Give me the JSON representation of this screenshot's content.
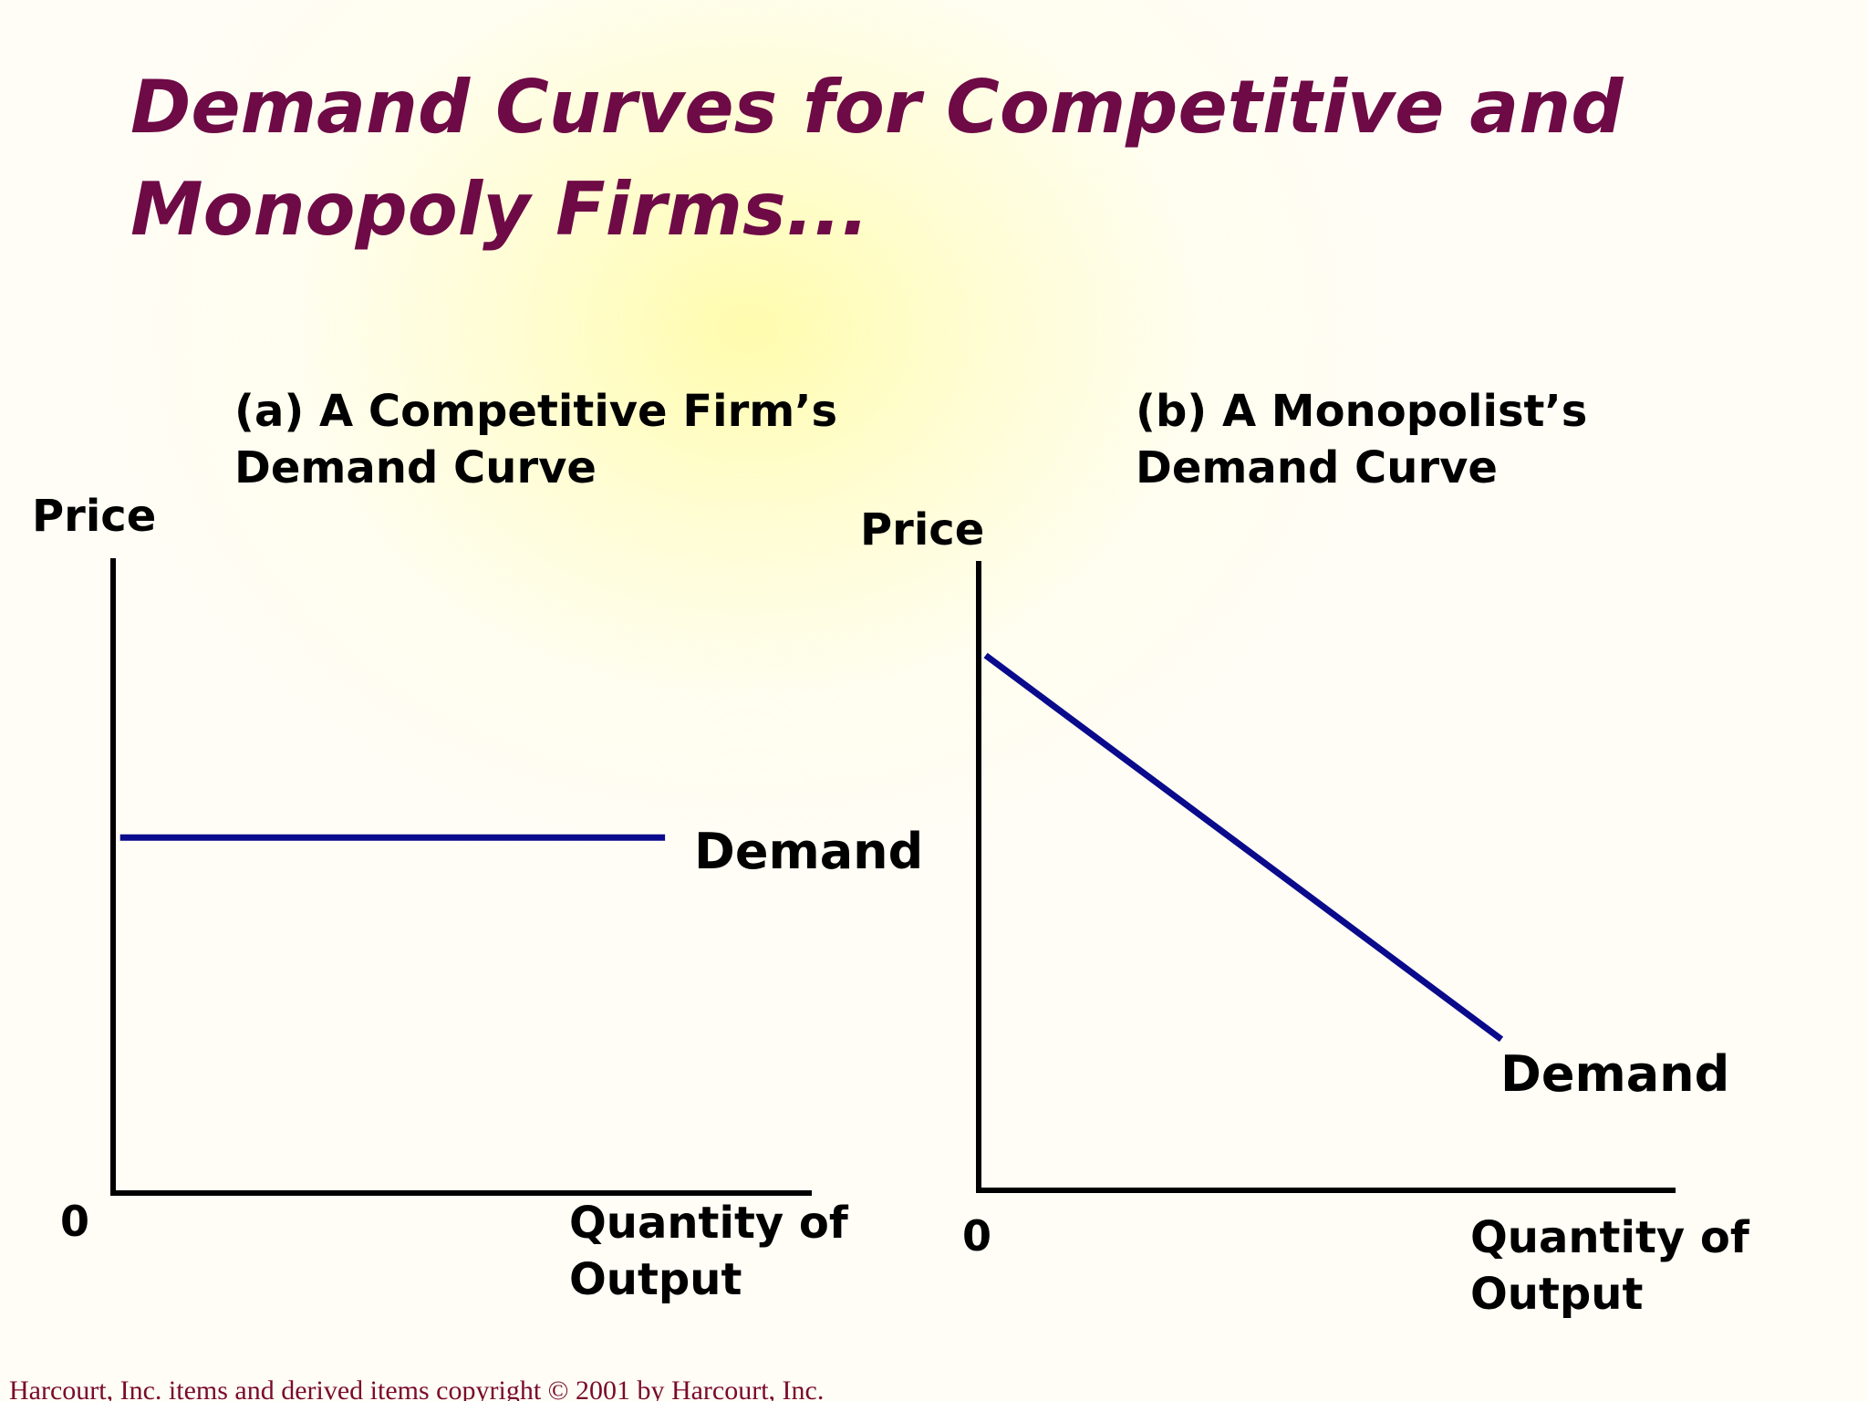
{
  "title": "Demand Curves for Competitive and Monopoly Firms...",
  "footer": "Harcourt, Inc. items and derived items copyright © 2001 by Harcourt, Inc.",
  "colors": {
    "title": "#6e0a46",
    "curve": "#0a0a8c",
    "axis": "#000000",
    "footer": "#7a0a2a"
  },
  "chart_data": [
    {
      "type": "line",
      "title_line1": "(a) A Competitive Firm’s",
      "title_line2": "Demand Curve",
      "ylabel": "Price",
      "xlabel_line1": "Quantity of",
      "xlabel_line2": "Output",
      "origin_label": "0",
      "xlim": [
        0,
        100
      ],
      "ylim": [
        0,
        100
      ],
      "series": [
        {
          "name": "Demand",
          "x": [
            1,
            79
          ],
          "y": [
            56,
            56
          ]
        }
      ]
    },
    {
      "type": "line",
      "title_line1": "(b) A Monopolist’s",
      "title_line2": "Demand Curve",
      "ylabel": "Price",
      "xlabel_line1": "Quantity of",
      "xlabel_line2": "Output",
      "origin_label": "0",
      "xlim": [
        0,
        100
      ],
      "ylim": [
        0,
        100
      ],
      "series": [
        {
          "name": "Demand",
          "x": [
            1,
            75
          ],
          "y": [
            85,
            24
          ]
        }
      ]
    }
  ]
}
